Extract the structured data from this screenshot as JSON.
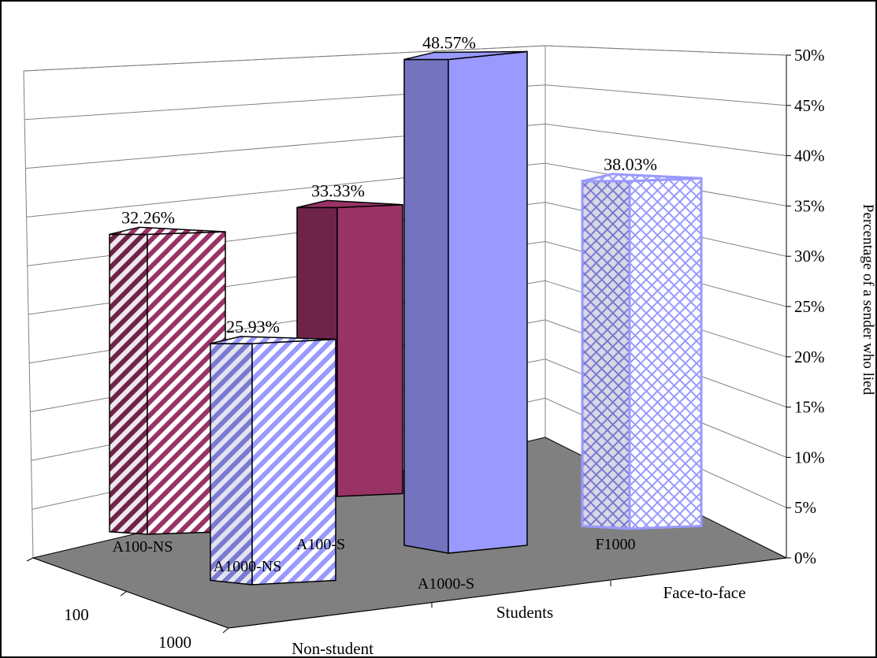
{
  "chart_data": {
    "type": "bar",
    "subtype": "3d-column",
    "title": "",
    "ylabel": "Percentage of a sender who lied",
    "ylim": [
      0,
      50
    ],
    "yticks": [
      "0%",
      "5%",
      "10%",
      "15%",
      "20%",
      "25%",
      "30%",
      "35%",
      "40%",
      "45%",
      "50%"
    ],
    "x_categories": [
      "Non-student",
      "Students",
      "Face-to-face"
    ],
    "depth_categories": [
      "100",
      "1000"
    ],
    "grid": true,
    "bars": [
      {
        "label": "A100-NS",
        "value": 32.26,
        "value_label": "32.26%",
        "x_category": "Non-student",
        "depth_category": "100",
        "color": "#993366",
        "pattern": "diagonal-stripes"
      },
      {
        "label": "A1000-NS",
        "value": 25.93,
        "value_label": "25.93%",
        "x_category": "Non-student",
        "depth_category": "1000",
        "color": "#9999ff",
        "pattern": "diagonal-stripes"
      },
      {
        "label": "A100-S",
        "value": 33.33,
        "value_label": "33.33%",
        "x_category": "Students",
        "depth_category": "100",
        "color": "#993366",
        "pattern": "solid"
      },
      {
        "label": "A1000-S",
        "value": 48.57,
        "value_label": "48.57%",
        "x_category": "Students",
        "depth_category": "1000",
        "color": "#9999ff",
        "pattern": "solid"
      },
      {
        "label": "F1000",
        "value": 38.03,
        "value_label": "38.03%",
        "x_category": "Face-to-face",
        "depth_category": "1000",
        "color": "#9999ff",
        "pattern": "crosshatch"
      }
    ]
  }
}
